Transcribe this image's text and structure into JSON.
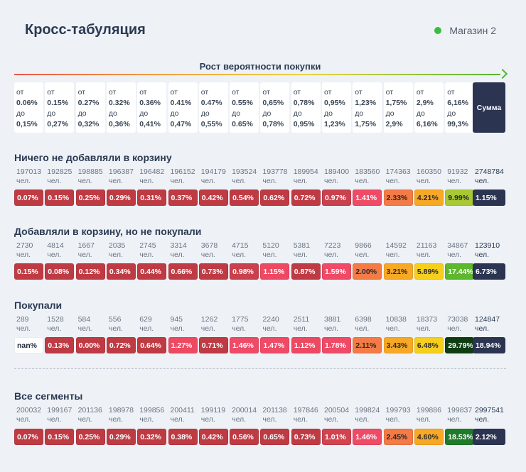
{
  "header": {
    "title": "Кросс-табуляция",
    "store_label": "Магазин 2",
    "store_color": "#3dbb3d"
  },
  "growth_label": "Рост вероятности покупки",
  "ranges": [
    {
      "from_word": "от",
      "from": "0.06%",
      "to_word": "до",
      "to": "0,15%"
    },
    {
      "from_word": "от",
      "from": "0.15%",
      "to_word": "до",
      "to": "0,27%"
    },
    {
      "from_word": "от",
      "from": "0.27%",
      "to_word": "до",
      "to": "0,32%"
    },
    {
      "from_word": "от",
      "from": "0.32%",
      "to_word": "до",
      "to": "0,36%"
    },
    {
      "from_word": "от",
      "from": "0.36%",
      "to_word": "до",
      "to": "0,41%"
    },
    {
      "from_word": "от",
      "from": "0.41%",
      "to_word": "до",
      "to": "0,47%"
    },
    {
      "from_word": "от",
      "from": "0.47%",
      "to_word": "до",
      "to": "0,55%"
    },
    {
      "from_word": "от",
      "from": "0.55%",
      "to_word": "до",
      "to": "0.65%"
    },
    {
      "from_word": "от",
      "from": "0,65%",
      "to_word": "до",
      "to": "0,78%"
    },
    {
      "from_word": "от",
      "from": "0,78%",
      "to_word": "до",
      "to": "0,95%"
    },
    {
      "from_word": "от",
      "from": "0,95%",
      "to_word": "до",
      "to": "1,23%"
    },
    {
      "from_word": "от",
      "from": "1,23%",
      "to_word": "до",
      "to": "1,75%"
    },
    {
      "from_word": "от",
      "from": "1,75%",
      "to_word": "до",
      "to": "2,9%"
    },
    {
      "from_word": "от",
      "from": "2,9%",
      "to_word": "до",
      "to": "6,16%"
    },
    {
      "from_word": "от",
      "from": "6,16%",
      "to_word": "до",
      "to": "99,3%"
    }
  ],
  "sum_label": "Сумма",
  "unit": "чел.",
  "sections": [
    {
      "title": "Ничего не добавляли в корзину",
      "counts": [
        "197013",
        "192825",
        "198885",
        "196387",
        "196482",
        "196152",
        "194179",
        "193524",
        "193778",
        "189954",
        "189400",
        "183560",
        "174363",
        "160350",
        "91932"
      ],
      "sum_count": "2748784",
      "cells": [
        "0.07%",
        "0.15%",
        "0.25%",
        "0.29%",
        "0.31%",
        "0.37%",
        "0.42%",
        "0.54%",
        "0.62%",
        "0.72%",
        "0.97%",
        "1.41%",
        "2.33%",
        "4.21%",
        "9.99%"
      ],
      "colors": [
        "#bf3b44",
        "#bf3b44",
        "#bf3b44",
        "#bf3b44",
        "#bf3b44",
        "#bf3b44",
        "#bf3b44",
        "#bf3b44",
        "#bf3b44",
        "#bf3b44",
        "#c8414d",
        "#ef4a66",
        "#f47b45",
        "#f7a824",
        "#a9c934"
      ],
      "sum_cell": "1.15%"
    },
    {
      "title": "Добавляли в корзину, но не покупали",
      "counts": [
        "2730",
        "4814",
        "1667",
        "2035",
        "2745",
        "3314",
        "3678",
        "4715",
        "5120",
        "5381",
        "7223",
        "9866",
        "14592",
        "21163",
        "34867"
      ],
      "sum_count": "123910",
      "cells": [
        "0.15%",
        "0.08%",
        "0.12%",
        "0.34%",
        "0.44%",
        "0.66%",
        "0.73%",
        "0.98%",
        "1.15%",
        "0.87%",
        "1.59%",
        "2.00%",
        "3.21%",
        "5.89%",
        "17.44%"
      ],
      "colors": [
        "#bf3b44",
        "#bf3b44",
        "#bf3b44",
        "#bf3b44",
        "#bf3b44",
        "#bf3b44",
        "#bf3b44",
        "#c8414d",
        "#ee4963",
        "#bf3b44",
        "#ef4a66",
        "#f47b45",
        "#f7a824",
        "#f6cf1c",
        "#5cb82d"
      ],
      "sum_cell": "6.73%"
    },
    {
      "title": "Покупали",
      "counts": [
        "289",
        "1528",
        "584",
        "556",
        "629",
        "945",
        "1262",
        "1775",
        "2240",
        "2511",
        "3881",
        "6398",
        "10838",
        "18373",
        "73038"
      ],
      "sum_count": "124847",
      "cells": [
        "nan%",
        "0.13%",
        "0.00%",
        "0.72%",
        "0.64%",
        "1.27%",
        "0.71%",
        "1.46%",
        "1.47%",
        "1.12%",
        "1.78%",
        "2.11%",
        "3.43%",
        "6.48%",
        "29.79%"
      ],
      "colors": [
        "#ffffff",
        "#bf3b44",
        "#bf3b44",
        "#bf3b44",
        "#bf3b44",
        "#ee4963",
        "#bf3b44",
        "#ef4a66",
        "#ef4a66",
        "#ee4963",
        "#ef4a66",
        "#f47b45",
        "#f7a824",
        "#f6cf1c",
        "#0f3d12"
      ],
      "sum_cell": "18.94%"
    },
    {
      "title": "Все сегменты",
      "counts": [
        "200032",
        "199167",
        "201136",
        "198978",
        "199856",
        "200411",
        "199119",
        "200014",
        "201138",
        "197846",
        "200504",
        "199824",
        "199793",
        "199886",
        "199837"
      ],
      "sum_count": "2997541",
      "cells": [
        "0.07%",
        "0.15%",
        "0.25%",
        "0.29%",
        "0.32%",
        "0.38%",
        "0.42%",
        "0.56%",
        "0.65%",
        "0.73%",
        "1.01%",
        "1.46%",
        "2.45%",
        "4.60%",
        "18.53%"
      ],
      "colors": [
        "#bf3b44",
        "#bf3b44",
        "#bf3b44",
        "#bf3b44",
        "#bf3b44",
        "#bf3b44",
        "#bf3b44",
        "#bf3b44",
        "#bf3b44",
        "#bf3b44",
        "#d0434f",
        "#ef4a66",
        "#f47b45",
        "#f7a824",
        "#1f7a2a"
      ],
      "sum_cell": "2.12%"
    }
  ]
}
